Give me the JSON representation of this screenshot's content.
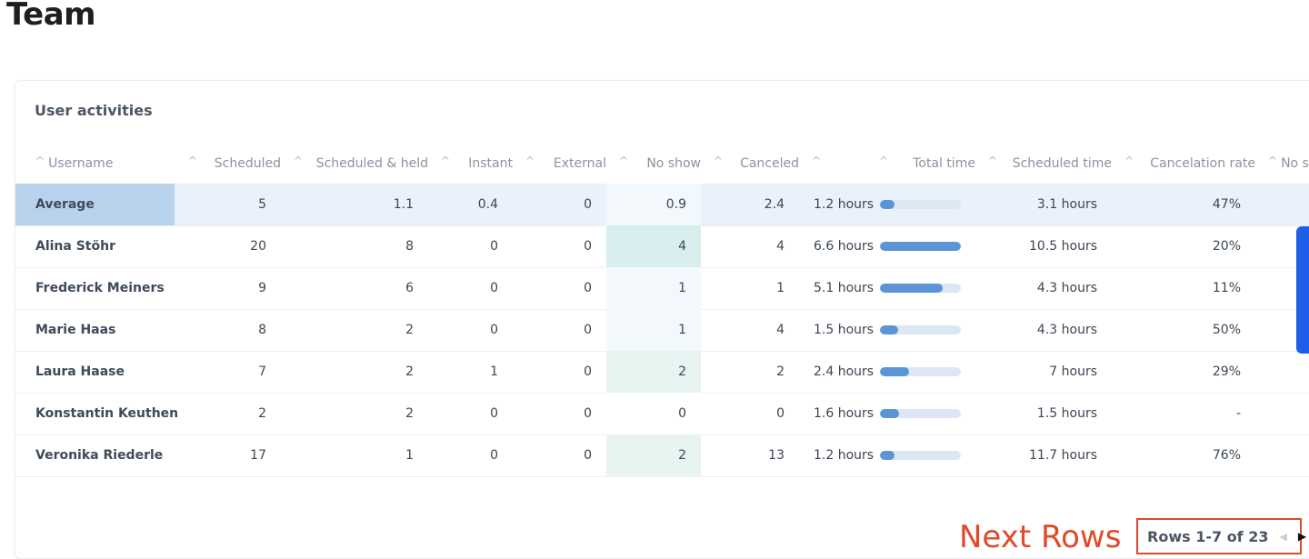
{
  "page": {
    "title": "Team"
  },
  "card": {
    "title": "User activities"
  },
  "columns": [
    "Username",
    "Scheduled",
    "Scheduled & held",
    "Instant",
    "External",
    "No show",
    "Canceled",
    "",
    "Total time",
    "Scheduled time",
    "Cancelation rate",
    "No s"
  ],
  "rows": [
    {
      "name": "Average",
      "scheduled": "5",
      "held": "1.1",
      "instant": "0.4",
      "external": "0",
      "noshow": "0.9",
      "canceled": "2.4",
      "total": "1.2 hours",
      "total_fraction": 0.18,
      "sched_time": "3.1 hours",
      "cancel_rate": "47%"
    },
    {
      "name": "Alina Stöhr",
      "scheduled": "20",
      "held": "8",
      "instant": "0",
      "external": "0",
      "noshow": "4",
      "canceled": "4",
      "total": "6.6 hours",
      "total_fraction": 1.0,
      "sched_time": "10.5 hours",
      "cancel_rate": "20%"
    },
    {
      "name": "Frederick Meiners",
      "scheduled": "9",
      "held": "6",
      "instant": "0",
      "external": "0",
      "noshow": "1",
      "canceled": "1",
      "total": "5.1 hours",
      "total_fraction": 0.77,
      "sched_time": "4.3 hours",
      "cancel_rate": "11%"
    },
    {
      "name": "Marie Haas",
      "scheduled": "8",
      "held": "2",
      "instant": "0",
      "external": "0",
      "noshow": "1",
      "canceled": "4",
      "total": "1.5 hours",
      "total_fraction": 0.22,
      "sched_time": "4.3 hours",
      "cancel_rate": "50%"
    },
    {
      "name": "Laura Haase",
      "scheduled": "7",
      "held": "2",
      "instant": "1",
      "external": "0",
      "noshow": "2",
      "canceled": "2",
      "total": "2.4 hours",
      "total_fraction": 0.36,
      "sched_time": "7 hours",
      "cancel_rate": "29%"
    },
    {
      "name": "Konstantin Keuthen",
      "scheduled": "2",
      "held": "2",
      "instant": "0",
      "external": "0",
      "noshow": "0",
      "canceled": "0",
      "total": "1.6 hours",
      "total_fraction": 0.24,
      "sched_time": "1.5 hours",
      "cancel_rate": "-"
    },
    {
      "name": "Veronika Riederle",
      "scheduled": "17",
      "held": "1",
      "instant": "0",
      "external": "0",
      "noshow": "2",
      "canceled": "13",
      "total": "1.2 hours",
      "total_fraction": 0.18,
      "sched_time": "11.7 hours",
      "cancel_rate": "76%"
    }
  ],
  "annotation": {
    "next_rows": "Next Rows"
  },
  "pagination": {
    "label": "Rows 1-7 of 23"
  },
  "colors": {
    "accent": "#5b95d6",
    "annotation": "#e04a2a",
    "scroll_handle": "#1d5fe8"
  }
}
